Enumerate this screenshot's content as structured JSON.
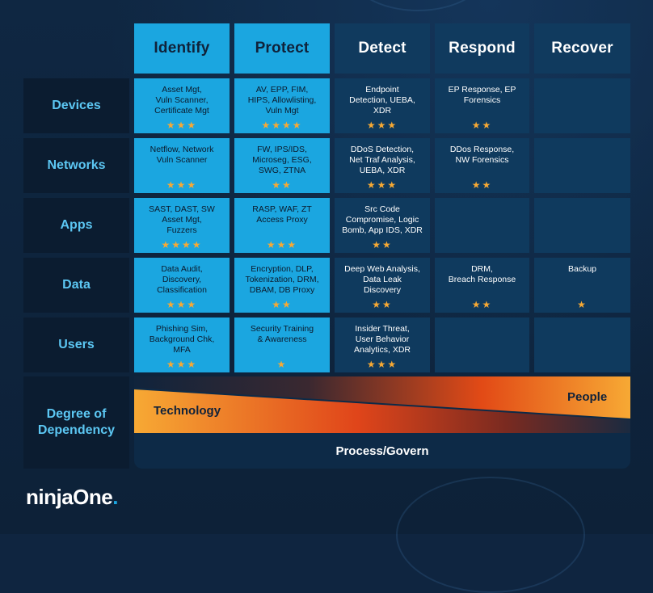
{
  "columns": [
    "Identify",
    "Protect",
    "Detect",
    "Respond",
    "Recover"
  ],
  "rows": [
    {
      "label": "Devices",
      "cells": [
        {
          "text": "Asset Mgt,\nVuln Scanner,\nCertificate Mgt",
          "stars": "★★★"
        },
        {
          "text": "AV, EPP, FIM,\nHIPS, Allowlisting,\nVuln Mgt",
          "stars": "★★★★"
        },
        {
          "text": "Endpoint\nDetection, UEBA,\nXDR",
          "stars": "★★★"
        },
        {
          "text": "EP Response, EP\nForensics",
          "stars": "★★"
        },
        {
          "text": "",
          "stars": ""
        }
      ]
    },
    {
      "label": "Networks",
      "cells": [
        {
          "text": "Netflow, Network\nVuln Scanner",
          "stars": "★★★"
        },
        {
          "text": "FW, IPS/IDS,\nMicroseg, ESG,\nSWG, ZTNA",
          "stars": "★★"
        },
        {
          "text": "DDoS Detection,\nNet Traf Analysis,\nUEBA, XDR",
          "stars": "★★★"
        },
        {
          "text": "DDos Response,\nNW Forensics",
          "stars": "★★"
        },
        {
          "text": "",
          "stars": ""
        }
      ]
    },
    {
      "label": "Apps",
      "cells": [
        {
          "text": "SAST, DAST, SW\nAsset Mgt,\nFuzzers",
          "stars": "★★★★"
        },
        {
          "text": "RASP, WAF, ZT\nAccess Proxy",
          "stars": "★★★"
        },
        {
          "text": "Src Code\nCompromise, Logic\nBomb, App IDS, XDR",
          "stars": "★★"
        },
        {
          "text": "",
          "stars": ""
        },
        {
          "text": "",
          "stars": ""
        }
      ]
    },
    {
      "label": "Data",
      "cells": [
        {
          "text": "Data Audit,\nDiscovery,\nClassification",
          "stars": "★★★"
        },
        {
          "text": "Encryption, DLP,\nTokenization, DRM,\nDBAM, DB Proxy",
          "stars": "★★"
        },
        {
          "text": "Deep Web Analysis,\nData Leak\nDiscovery",
          "stars": "★★"
        },
        {
          "text": "DRM,\nBreach Response",
          "stars": "★★"
        },
        {
          "text": "Backup",
          "stars": "★"
        }
      ]
    },
    {
      "label": "Users",
      "cells": [
        {
          "text": "Phishing Sim,\nBackground Chk,\nMFA",
          "stars": "★★★"
        },
        {
          "text": "Security Training\n& Awareness",
          "stars": "★"
        },
        {
          "text": "Insider Threat,\nUser Behavior\nAnalytics, XDR",
          "stars": "★★★"
        },
        {
          "text": "",
          "stars": ""
        },
        {
          "text": "",
          "stars": ""
        }
      ]
    }
  ],
  "dependency": {
    "label": "Degree of Dependency",
    "technology": "Technology",
    "people": "People",
    "process": "Process/Govern"
  },
  "logo": {
    "ninja": "ninja",
    "one": "One",
    "dot": "."
  },
  "colors": {
    "light_cell": "#1ba6e0",
    "dark_cell": "#0f3a5e",
    "row_label_bg": "#0b1c30",
    "row_label_text": "#5cc7f3",
    "star": "#f7a934",
    "orange_start": "#f7a934",
    "orange_mid": "#d8400f"
  }
}
